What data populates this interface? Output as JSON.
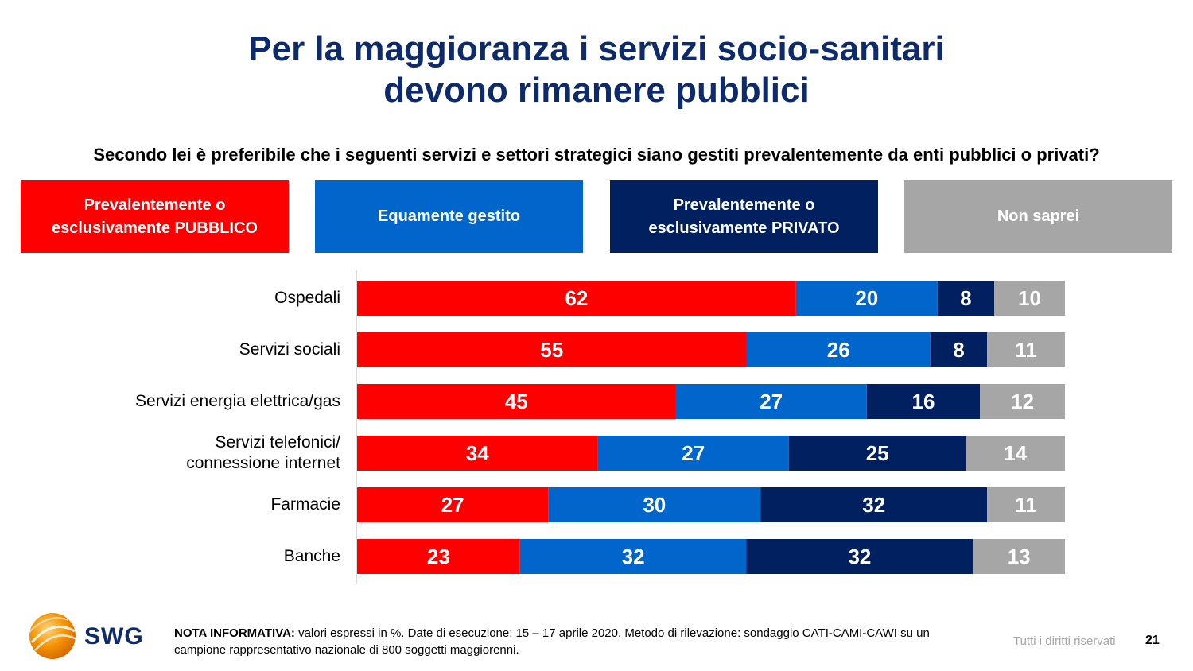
{
  "title": {
    "line1": "Per la maggioranza i servizi socio-sanitari",
    "line2": "devono rimanere pubblici"
  },
  "question": "Secondo lei è preferibile che i seguenti servizi e settori strategici siano gestiti prevalentemente da enti pubblici o privati?",
  "legend": [
    {
      "label_line1": "Prevalentemente o",
      "label_line2": "esclusivamente PUBBLICO",
      "color": "#ff0000"
    },
    {
      "label_line1": "Equamente gestito",
      "label_line2": "",
      "color": "#0066cc"
    },
    {
      "label_line1": "Prevalentemente o",
      "label_line2": "esclusivamente PRIVATO",
      "color": "#002060"
    },
    {
      "label_line1": "Non saprei",
      "label_line2": "",
      "color": "#a6a6a6"
    }
  ],
  "chart_data": {
    "type": "bar",
    "orientation": "horizontal-stacked",
    "categories": [
      [
        "Ospedali"
      ],
      [
        "Servizi sociali"
      ],
      [
        "Servizi energia elettrica/gas"
      ],
      [
        "Servizi telefonici/",
        "connessione internet"
      ],
      [
        "Farmacie"
      ],
      [
        "Banche"
      ]
    ],
    "series": [
      {
        "name": "Prevalentemente o esclusivamente PUBBLICO",
        "color": "#ff0000",
        "values": [
          62,
          55,
          45,
          34,
          27,
          23
        ]
      },
      {
        "name": "Equamente gestito",
        "color": "#0066cc",
        "values": [
          20,
          26,
          27,
          27,
          30,
          32
        ]
      },
      {
        "name": "Prevalentemente o esclusivamente PRIVATO",
        "color": "#002060",
        "values": [
          8,
          8,
          16,
          25,
          32,
          32
        ]
      },
      {
        "name": "Non saprei",
        "color": "#a6a6a6",
        "values": [
          10,
          11,
          12,
          14,
          11,
          13
        ]
      }
    ],
    "legend_placement": "top",
    "grid": false
  },
  "footer": {
    "logo_text": "SWG",
    "note_bold": "NOTA INFORMATIVA:",
    "note_text": " valori espressi in %. Date di esecuzione: 15 – 17 aprile 2020. Metodo di rilevazione: sondaggio CATI-CAMI-CAWI su un campione rappresentativo nazionale di 800 soggetti maggiorenni.",
    "rights": "Tutti i diritti riservati",
    "page": "21"
  }
}
